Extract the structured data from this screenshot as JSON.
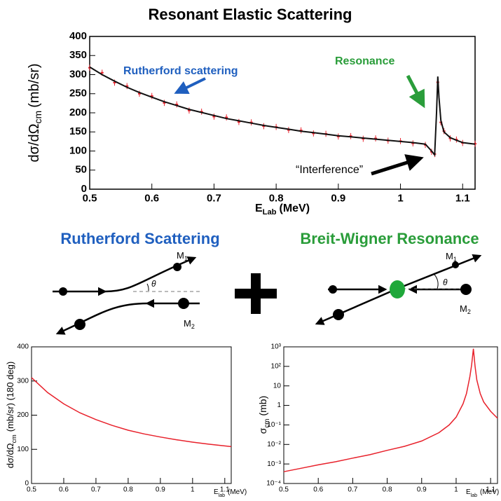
{
  "chart_data": [
    {
      "type": "line",
      "title": "Resonant Elastic Scattering",
      "x_label": {
        "main": "E",
        "sub": "Lab",
        "unit": "(MeV)"
      },
      "y_label": {
        "main": "dσ/dΩ",
        "sub": "cm",
        "unit": "(mb/sr)"
      },
      "xlim": [
        0.5,
        1.12
      ],
      "xticks": [
        0.5,
        0.6,
        0.7,
        0.8,
        0.9,
        1,
        1.1
      ],
      "ylim": [
        0,
        400
      ],
      "yticks": [
        0,
        50,
        100,
        150,
        200,
        250,
        300,
        350,
        400
      ],
      "annotations": [
        "Rutherford scattering",
        "Resonance",
        "“Interference”"
      ],
      "annotation_colors": [
        "#1f5fbf",
        "#2a9d3a",
        "#000000"
      ],
      "series": [
        {
          "color": "#e8212b",
          "x": [
            0.5,
            0.52,
            0.54,
            0.56,
            0.58,
            0.6,
            0.62,
            0.64,
            0.66,
            0.68,
            0.7,
            0.72,
            0.74,
            0.76,
            0.78,
            0.8,
            0.82,
            0.84,
            0.86,
            0.88,
            0.9,
            0.92,
            0.94,
            0.96,
            0.98,
            1.0,
            1.02,
            1.04,
            1.05,
            1.055,
            1.06,
            1.065,
            1.07,
            1.08,
            1.09,
            1.1,
            1.12
          ],
          "values": [
            318,
            305,
            279,
            270,
            250,
            244,
            226,
            222,
            206,
            203,
            190,
            188,
            176,
            175,
            165,
            163,
            155,
            154,
            146,
            145,
            138,
            139,
            132,
            133,
            127,
            126,
            120,
            116,
            98,
            92,
            280,
            175,
            152,
            133,
            130,
            121,
            119
          ],
          "errors": [
            8,
            8,
            8,
            8,
            8,
            8,
            8,
            8,
            8,
            8,
            8,
            8,
            8,
            8,
            8,
            8,
            8,
            8,
            8,
            8,
            8,
            8,
            8,
            8,
            8,
            8,
            8,
            8,
            8,
            8,
            8,
            8,
            8,
            8,
            8,
            8,
            8
          ]
        },
        {
          "color": "#111111",
          "x": [
            0.5,
            0.52,
            0.54,
            0.56,
            0.58,
            0.6,
            0.62,
            0.64,
            0.66,
            0.68,
            0.7,
            0.72,
            0.74,
            0.76,
            0.78,
            0.8,
            0.82,
            0.84,
            0.86,
            0.88,
            0.9,
            0.92,
            0.94,
            0.96,
            0.98,
            1.0,
            1.02,
            1.04,
            1.05,
            1.055,
            1.058,
            1.06,
            1.062,
            1.065,
            1.07,
            1.08,
            1.09,
            1.1,
            1.12
          ],
          "values": [
            320,
            300,
            283,
            267,
            253,
            241,
            229,
            219,
            209,
            201,
            193,
            185,
            179,
            173,
            167,
            162,
            157,
            152,
            148,
            144,
            140,
            137,
            134,
            131,
            128,
            125,
            122,
            118,
            100,
            90,
            200,
            295,
            240,
            180,
            150,
            135,
            128,
            122,
            118
          ]
        }
      ]
    },
    {
      "type": "line",
      "x_label": {
        "main": "E",
        "sub": "lab",
        "unit": "(MeV)"
      },
      "y_label": {
        "main": "dσ/dΩ",
        "sub": "cm",
        "unit": "(mb/sr)  (180 deg)"
      },
      "xlim": [
        0.5,
        1.12
      ],
      "xticks": [
        0.5,
        0.6,
        0.7,
        0.8,
        0.9,
        1,
        1.1
      ],
      "ylim": [
        0,
        400
      ],
      "yticks": [
        0,
        100,
        200,
        300,
        400
      ],
      "series": [
        {
          "color": "#e8212b",
          "x": [
            0.5,
            0.55,
            0.6,
            0.65,
            0.7,
            0.75,
            0.8,
            0.85,
            0.9,
            0.95,
            1.0,
            1.05,
            1.1,
            1.12
          ],
          "values": [
            310,
            266,
            233,
            207,
            187,
            170,
            156,
            145,
            136,
            128,
            121,
            115,
            110,
            108
          ]
        }
      ]
    },
    {
      "type": "line",
      "log_y": true,
      "x_label": {
        "main": "E",
        "sub": "lab",
        "unit": "(MeV)"
      },
      "y_label": {
        "main": "σ",
        "sub": "cm",
        "unit": "(mb)"
      },
      "xlim": [
        0.5,
        1.12
      ],
      "xticks": [
        0.5,
        0.6,
        0.7,
        0.8,
        0.9,
        1,
        1.1
      ],
      "ylim": [
        0.0001,
        1000
      ],
      "yticks": [
        {
          "value": 0.0001,
          "label": "10⁻⁴"
        },
        {
          "value": 0.001,
          "label": "10⁻³"
        },
        {
          "value": 0.01,
          "label": "10⁻²"
        },
        {
          "value": 0.1,
          "label": "10⁻¹"
        },
        1,
        10,
        {
          "value": 100,
          "label": "10²"
        },
        {
          "value": 1000,
          "label": "10³"
        }
      ],
      "series": [
        {
          "color": "#e8212b",
          "x": [
            0.5,
            0.55,
            0.6,
            0.65,
            0.7,
            0.75,
            0.8,
            0.85,
            0.9,
            0.95,
            0.98,
            1.0,
            1.02,
            1.03,
            1.04,
            1.045,
            1.05,
            1.055,
            1.06,
            1.07,
            1.08,
            1.1,
            1.12
          ],
          "values": [
            0.0004,
            0.0006,
            0.0009,
            0.0013,
            0.002,
            0.003,
            0.005,
            0.008,
            0.015,
            0.04,
            0.1,
            0.25,
            1.2,
            4,
            30,
            120,
            800,
            100,
            20,
            4,
            1.5,
            0.5,
            0.22
          ]
        }
      ]
    }
  ],
  "diagrams": [
    {
      "title": "Rutherford Scattering",
      "m1": {
        "main": "M",
        "sub": "1"
      },
      "m2": {
        "main": "M",
        "sub": "2"
      },
      "angle": "θ"
    },
    {
      "title": "Breit-Wigner Resonance",
      "m1": {
        "main": "M",
        "sub": "1"
      },
      "m2": {
        "main": "M",
        "sub": "2"
      },
      "angle": "θ"
    }
  ]
}
